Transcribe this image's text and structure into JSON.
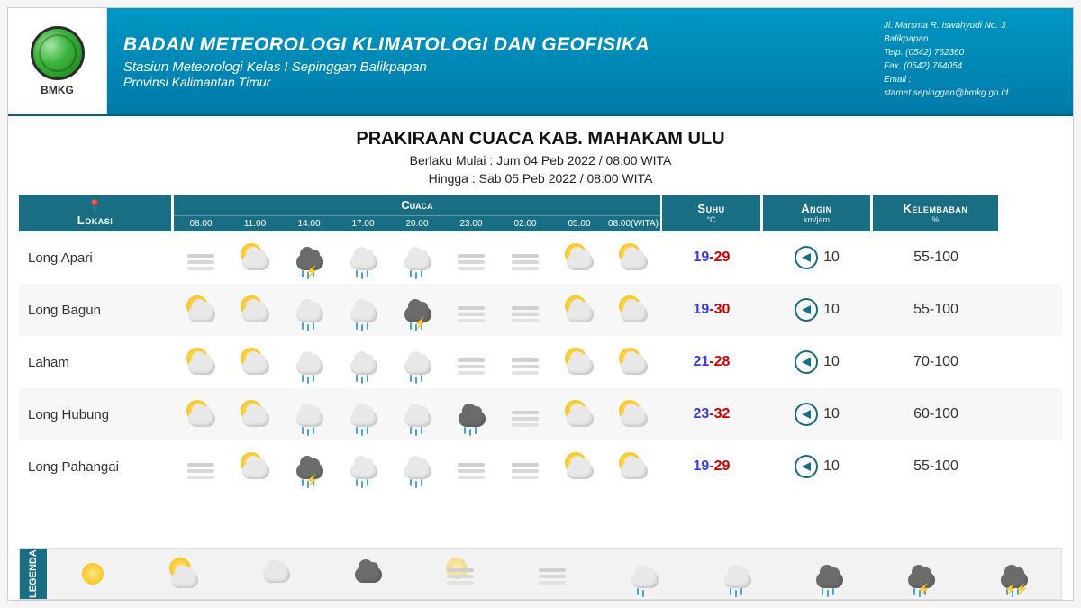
{
  "header": {
    "org_acronym": "BMKG",
    "org_name": "BADAN METEOROLOGI KLIMATOLOGI DAN GEOFISIKA",
    "station": "Stasiun Meteorologi Kelas I Sepinggan Balikpapan",
    "province": "Provinsi Kalimantan Timur",
    "contact": {
      "address": "Jl. Marsma R. Iswahyudi No. 3",
      "city": "Balikpapan",
      "phone_label": "Telp.",
      "phone": "(0542) 762360",
      "fax_label": "Fax.",
      "fax": "(0542) 764054",
      "email_label": "Email :",
      "email": "stamet.sepinggan@bmkg.go.id"
    }
  },
  "title": {
    "main": "PRAKIRAAN CUACA KAB. MAHAKAM ULU",
    "valid_from_label": "Berlaku Mulai :",
    "valid_from": "Jum 04 Peb 2022 / 08:00 WITA",
    "valid_to_label": "Hingga :",
    "valid_to": "Sab 05 Peb 2022 / 08:00 WITA"
  },
  "columns": {
    "location": "Lokasi",
    "weather": "Cuaca",
    "temp": "Suhu",
    "temp_unit": "°C",
    "wind": "Angin",
    "wind_unit": "km/jam",
    "humidity": "Kelembaban",
    "humidity_unit": "%",
    "times": [
      "08.00",
      "11.00",
      "14.00",
      "17.00",
      "20.00",
      "23.00",
      "02.00",
      "05.00",
      "08.00(WITA)"
    ]
  },
  "weather_icons": {
    "types": [
      "fog",
      "partly",
      "storm",
      "rain",
      "rain",
      "fog",
      "fog",
      "partly",
      "partly"
    ]
  },
  "rows": [
    {
      "location": "Long Apari",
      "icons": [
        "fog",
        "partly",
        "storm",
        "rain",
        "rain",
        "fog",
        "fog",
        "partly",
        "partly"
      ],
      "temp_lo": "19",
      "temp_hi": "29",
      "wind_speed": "10",
      "humidity": "55-100"
    },
    {
      "location": "Long Bagun",
      "icons": [
        "partly",
        "partly",
        "rain",
        "rain",
        "storm",
        "fog",
        "fog",
        "partly",
        "partly"
      ],
      "temp_lo": "19",
      "temp_hi": "30",
      "wind_speed": "10",
      "humidity": "55-100"
    },
    {
      "location": "Laham",
      "icons": [
        "partly",
        "partly",
        "rain",
        "rain",
        "rain",
        "fog",
        "fog",
        "partly",
        "partly"
      ],
      "temp_lo": "21",
      "temp_hi": "28",
      "wind_speed": "10",
      "humidity": "70-100"
    },
    {
      "location": "Long Hubung",
      "icons": [
        "partly",
        "partly",
        "rain",
        "rain",
        "rain",
        "darkrain",
        "fog",
        "partly",
        "partly"
      ],
      "temp_lo": "23",
      "temp_hi": "32",
      "wind_speed": "10",
      "humidity": "60-100"
    },
    {
      "location": "Long Pahangai",
      "icons": [
        "fog",
        "partly",
        "storm",
        "rain",
        "rain",
        "fog",
        "fog",
        "partly",
        "partly"
      ],
      "temp_lo": "19",
      "temp_hi": "29",
      "wind_speed": "10",
      "humidity": "55-100"
    }
  ],
  "legend": {
    "label": "LEGENDA",
    "items": [
      "sunny",
      "partly",
      "cloudy",
      "overcast",
      "haze",
      "fog",
      "lightrain",
      "rain",
      "heavyrain",
      "storm",
      "severestorm"
    ]
  },
  "colors": {
    "banner_top": "#0097c4",
    "banner_bottom": "#007aa8",
    "header_cell": "#1a6e83",
    "temp_low": "#3a3adf",
    "temp_high": "#c00",
    "rain": "#4aa3d6",
    "bolt": "#f5c500"
  }
}
